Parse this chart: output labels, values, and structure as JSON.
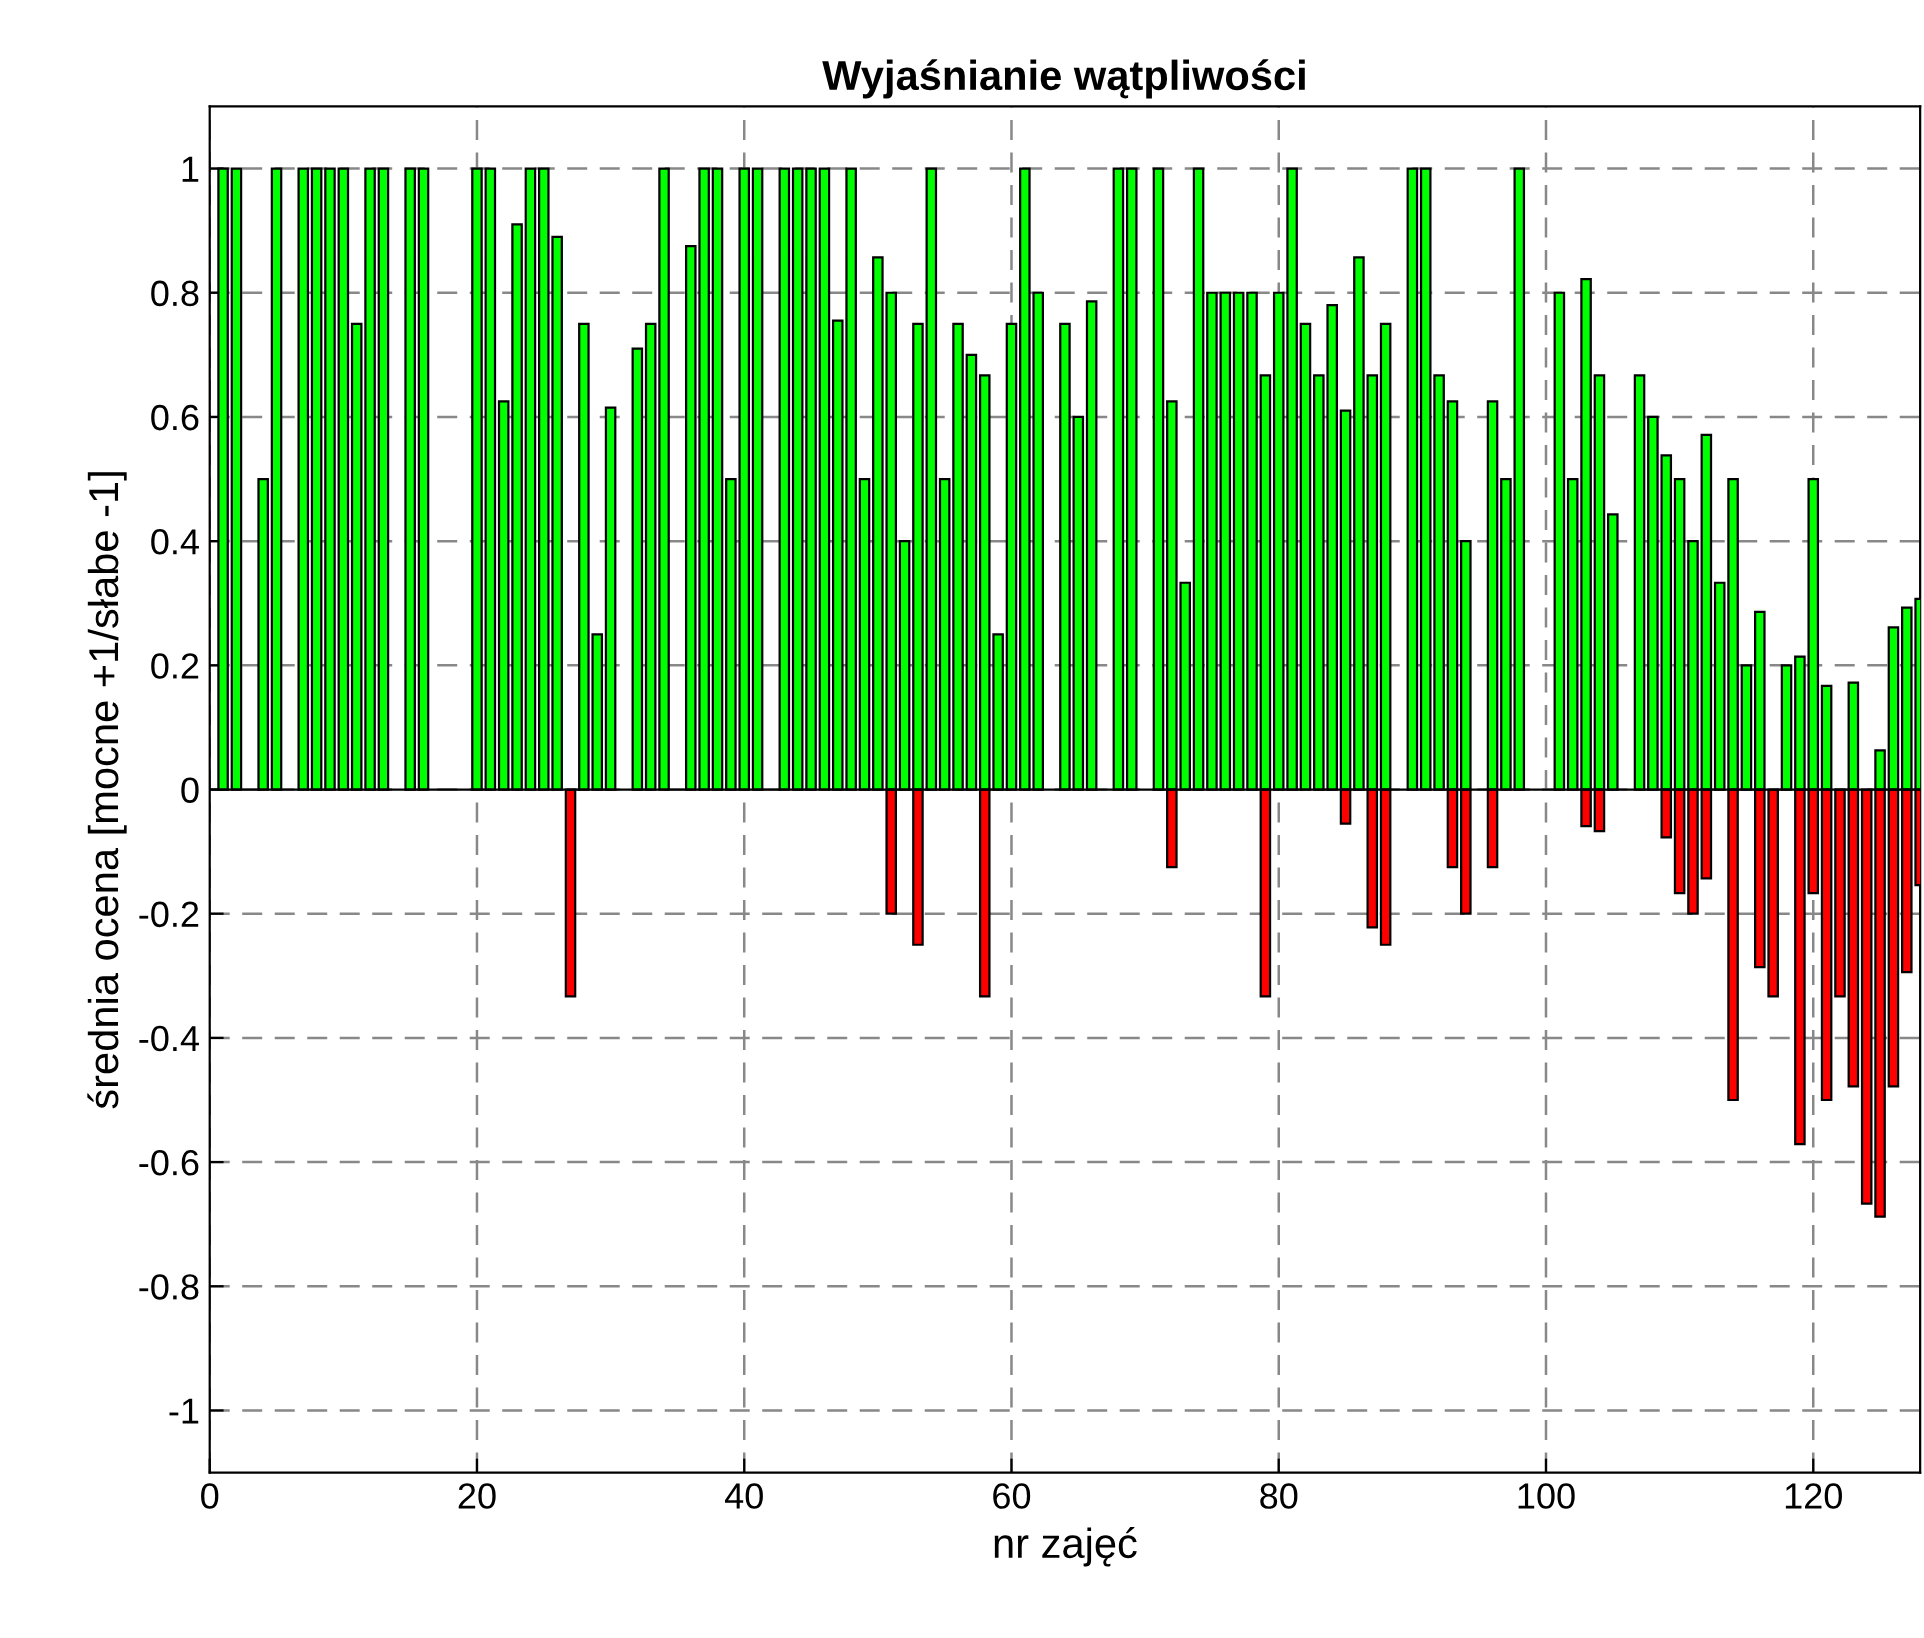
{
  "chart_data": {
    "type": "bar",
    "title": "Wyjaśnianie wątpliwości",
    "xlabel": "nr zajęć",
    "ylabel": "średnia ocena [mocne +1/słabe -1]",
    "x": [
      1,
      2,
      3,
      4,
      5,
      6,
      7,
      8,
      9,
      10,
      11,
      12,
      13,
      14,
      15,
      16,
      17,
      18,
      19,
      20,
      21,
      22,
      23,
      24,
      25,
      26,
      27,
      28,
      29,
      30,
      31,
      32,
      33,
      34,
      35,
      36,
      37,
      38,
      39,
      40,
      41,
      42,
      43,
      44,
      45,
      46,
      47,
      48,
      49,
      50,
      51,
      52,
      53,
      54,
      55,
      56,
      57,
      58,
      59,
      60,
      61,
      62,
      63,
      64,
      65,
      66,
      67,
      68,
      69,
      70,
      71,
      72,
      73,
      74,
      75,
      76,
      77,
      78,
      79,
      80,
      81,
      82,
      83,
      84,
      85,
      86,
      87,
      88,
      89,
      90,
      91,
      92,
      93,
      94,
      95,
      96,
      97,
      98,
      99,
      100,
      101,
      102,
      103,
      104,
      105,
      106,
      107,
      108,
      109,
      110,
      111,
      112,
      113,
      114,
      115,
      116,
      117,
      118,
      119,
      120,
      121,
      122,
      123,
      124,
      125,
      126,
      127,
      128
    ],
    "series": [
      {
        "color": "#00ff00",
        "values": [
          1,
          1,
          null,
          0.5,
          1,
          null,
          1,
          1,
          1,
          1,
          0.75,
          1,
          1,
          null,
          1,
          1,
          null,
          null,
          null,
          1,
          1,
          0.625,
          0.91,
          1,
          1,
          0.89,
          null,
          0.75,
          0.25,
          0.615,
          null,
          0.71,
          0.75,
          1,
          null,
          0.875,
          1,
          1,
          0.5,
          1,
          1,
          null,
          1,
          1,
          1,
          1,
          0.755,
          1,
          0.5,
          0.857,
          0.8,
          0.4,
          0.75,
          1,
          0.5,
          0.75,
          0.7,
          0.667,
          0.25,
          0.75,
          1,
          0.8,
          null,
          0.75,
          0.6,
          0.786,
          null,
          1,
          1,
          null,
          1,
          0.625,
          0.333,
          1,
          0.8,
          0.8,
          0.8,
          0.8,
          0.667,
          0.8,
          1,
          0.75,
          0.667,
          0.78,
          0.61,
          0.857,
          0.667,
          0.75,
          null,
          1,
          1,
          0.667,
          0.625,
          0.4,
          null,
          0.625,
          0.5,
          1,
          null,
          null,
          0.8,
          0.5,
          0.822,
          0.667,
          0.443,
          null,
          0.667,
          0.6,
          0.538,
          0.5,
          0.4,
          0.571,
          0.333,
          0.5,
          0.2,
          0.286,
          null,
          0.2,
          0.214,
          0.5,
          0.167,
          null,
          0.172,
          null,
          0.063,
          0.261,
          0.293,
          0.307
        ]
      },
      {
        "color": "#ff0000",
        "values": [
          null,
          null,
          null,
          null,
          null,
          null,
          null,
          null,
          null,
          null,
          null,
          null,
          null,
          null,
          null,
          null,
          null,
          null,
          null,
          null,
          null,
          null,
          null,
          null,
          null,
          null,
          -0.333,
          null,
          null,
          null,
          null,
          null,
          null,
          null,
          null,
          null,
          null,
          null,
          null,
          null,
          null,
          null,
          null,
          null,
          null,
          null,
          null,
          null,
          null,
          null,
          -0.2,
          null,
          -0.25,
          null,
          null,
          null,
          null,
          -0.333,
          null,
          null,
          null,
          null,
          null,
          null,
          null,
          null,
          null,
          null,
          null,
          null,
          null,
          -0.125,
          null,
          null,
          null,
          null,
          null,
          null,
          -0.333,
          null,
          null,
          null,
          null,
          null,
          -0.055,
          null,
          -0.222,
          -0.25,
          null,
          null,
          null,
          null,
          -0.125,
          -0.2,
          null,
          -0.125,
          null,
          null,
          null,
          null,
          null,
          null,
          -0.059,
          -0.067,
          null,
          null,
          null,
          null,
          -0.077,
          -0.167,
          -0.2,
          -0.143,
          null,
          -0.5,
          null,
          -0.286,
          -0.333,
          null,
          -0.571,
          -0.167,
          -0.5,
          -0.333,
          -0.478,
          -0.667,
          -0.688,
          -0.478,
          -0.294,
          -0.154
        ]
      }
    ],
    "xlim": [
      0,
      128
    ],
    "xticks": [
      0,
      20,
      40,
      60,
      80,
      100,
      120
    ],
    "ylim": [
      -1.1,
      1.1
    ],
    "yticks": [
      -1,
      -0.8,
      -0.6,
      -0.4,
      -0.2,
      0,
      0.2,
      0.4,
      0.6,
      0.8,
      1
    ],
    "grid": true
  }
}
